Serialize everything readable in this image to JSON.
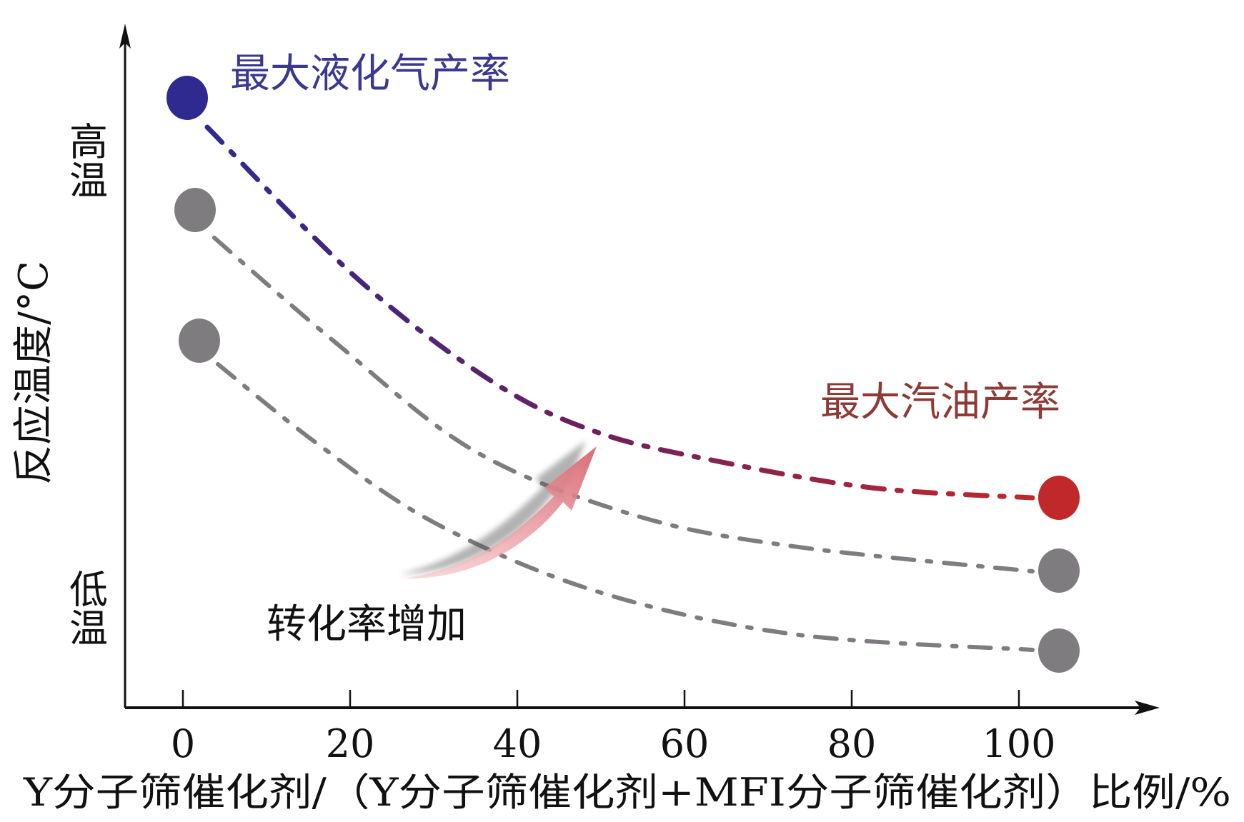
{
  "chart_data": {
    "type": "line",
    "title": "",
    "xlabel": "Y分子筛催化剂/（Y分子筛催化剂+MFI分子筛催化剂）比例/%",
    "ylabel": "反应温度/°C",
    "x_ticks": [
      "0",
      "20",
      "40",
      "60",
      "80",
      "100"
    ],
    "xlim": [
      0,
      100
    ],
    "y_tick_labels": {
      "high": "高温",
      "low": "低温"
    },
    "grid": false,
    "series": [
      {
        "start_label": "最大液化气产率",
        "end_label": "最大汽油产率",
        "start_color": "#2e2a8f",
        "end_color": "#c0282a",
        "style": "dash-dot",
        "rank": "upper"
      },
      {
        "color": "#7f7c80",
        "style": "dash-dot",
        "rank": "middle"
      },
      {
        "color": "#7f7c80",
        "style": "dash-dot",
        "rank": "lower"
      }
    ],
    "annotations": {
      "lpg_label": "最大液化气产率",
      "gasoline_label": "最大汽油产率",
      "arrow_label": "转化率增加"
    },
    "colors": {
      "lpg": "#3a3890",
      "gasoline": "#8e3a36",
      "dot_gray": "#7f7c80",
      "arrow": "#e48a90"
    }
  }
}
